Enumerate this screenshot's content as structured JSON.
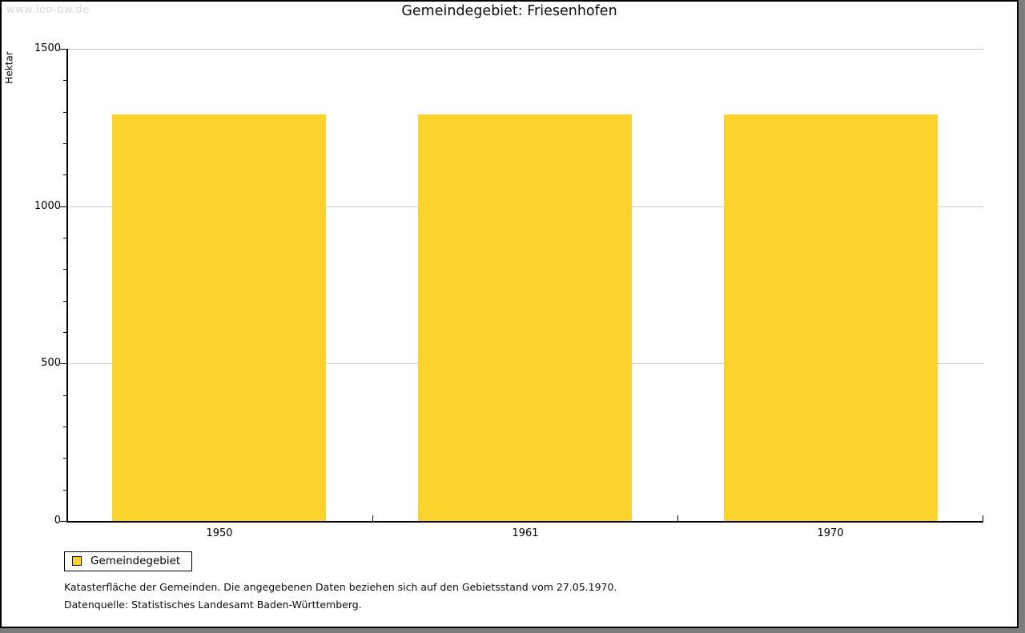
{
  "watermark": "www.leo-bw.de",
  "header": {
    "title": "Gemeindegebiet: Friesenhofen"
  },
  "chart_data": {
    "type": "bar",
    "title": "Gemeindegebiet: Friesenhofen",
    "xlabel": "",
    "ylabel": "Hektar",
    "categories": [
      "1950",
      "1961",
      "1970"
    ],
    "series": [
      {
        "name": "Gemeindegebiet",
        "values": [
          1292,
          1292,
          1292
        ],
        "color": "#FCD32D"
      }
    ],
    "ylim": [
      0,
      1500
    ],
    "y_major_step": 500,
    "y_minor_step": 100,
    "y_major_tick_labels": [
      "0",
      "500",
      "1000",
      "1500"
    ],
    "grid": "horizontal gridlines at major ticks",
    "legend_position": "bottom-left, outside plot"
  },
  "legend": {
    "items": [
      {
        "label": "Gemeindegebiet",
        "color": "#FCD32D"
      }
    ]
  },
  "footnotes": [
    "Katasterfläche der Gemeinden. Die angegebenen Daten beziehen sich auf den Gebietsstand vom 27.05.1970.",
    "Datenquelle: Statistisches Landesamt Baden-Württemberg."
  ],
  "colors": {
    "bar": "#FCD32D",
    "gridline": "#cccccc",
    "axis": "#000000",
    "watermark_text": "#d9d9d9",
    "frame_shadow": "#7d7d7d"
  }
}
